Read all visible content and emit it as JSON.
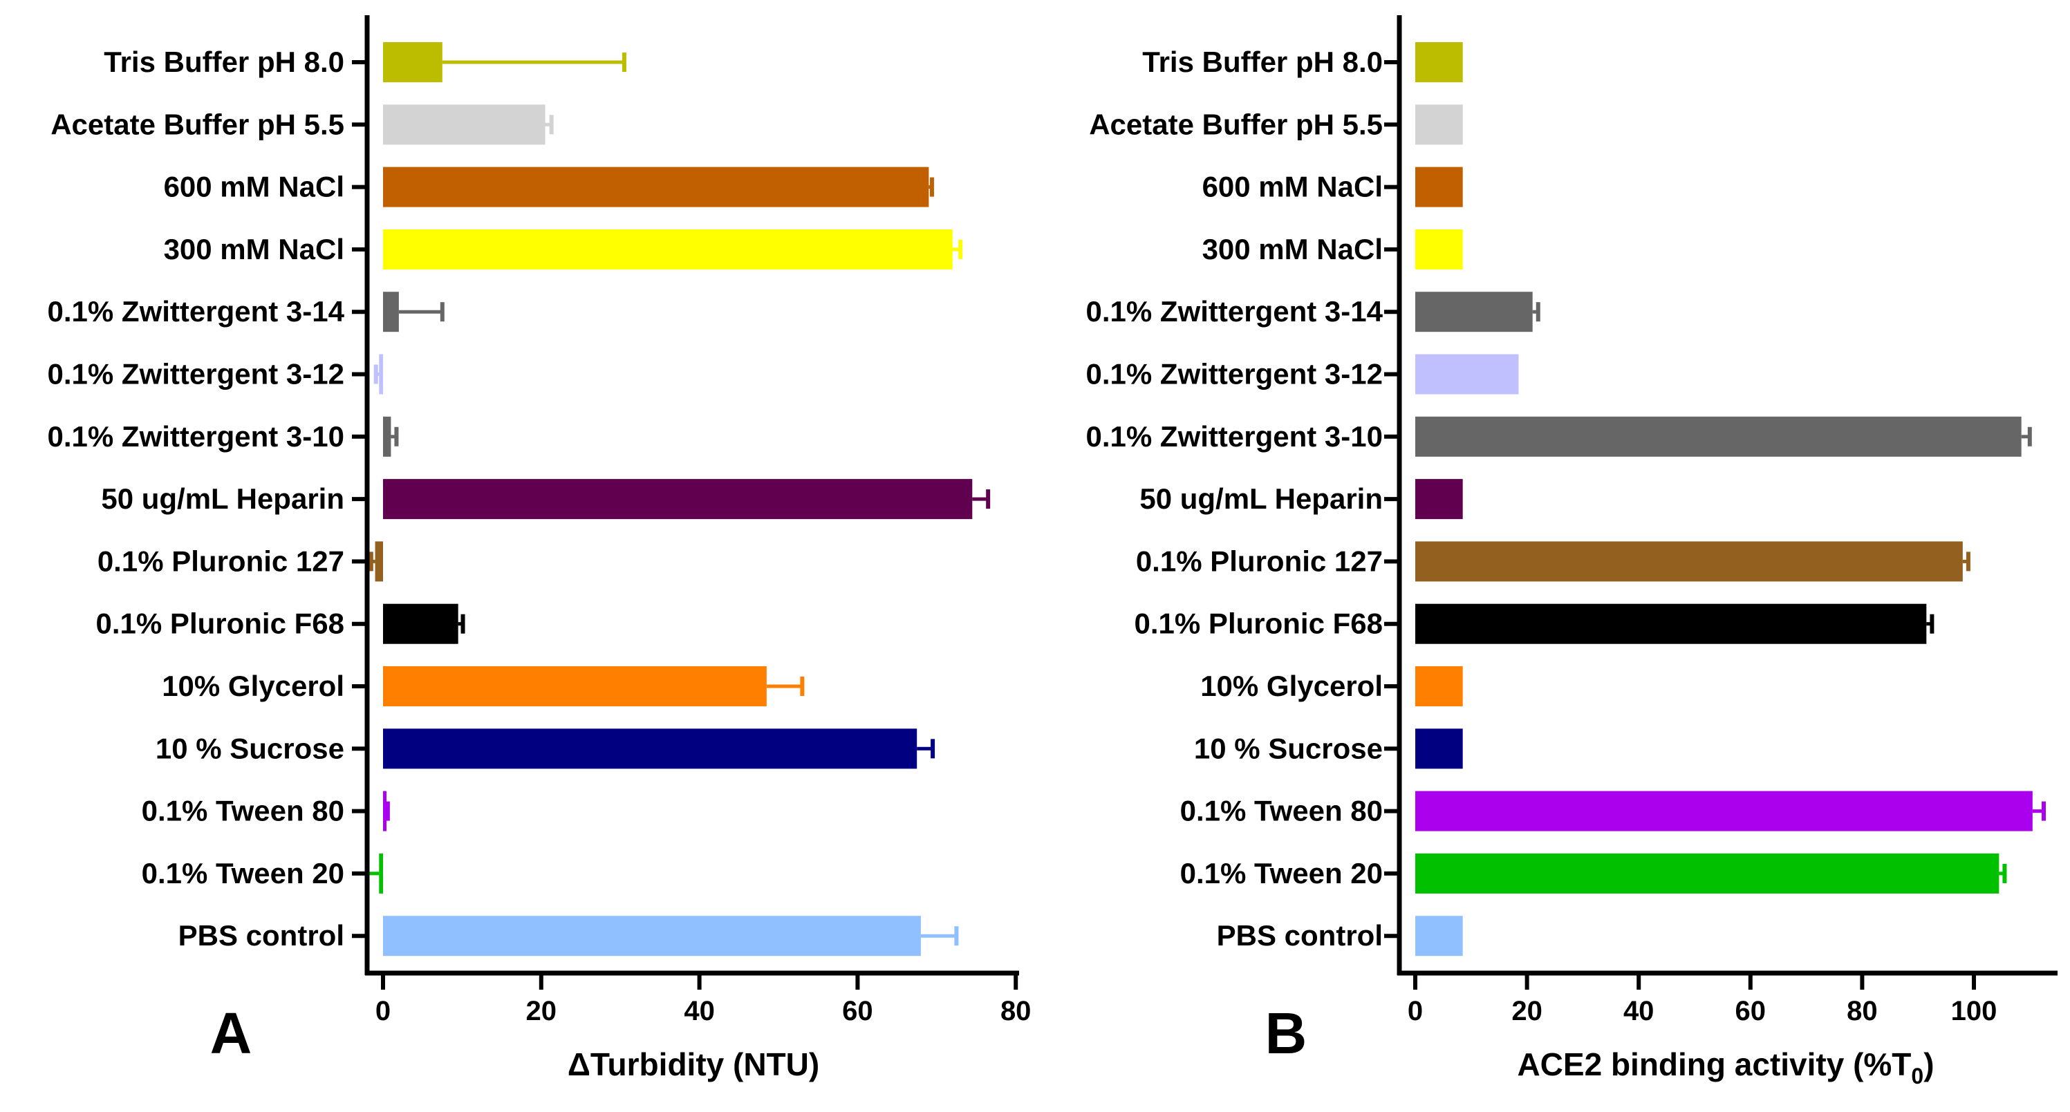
{
  "chart_data": [
    {
      "type": "bar",
      "orientation": "horizontal",
      "panel_label": "A",
      "title": "",
      "xlabel": "ΔTurbidity (NTU)",
      "ylabel": "",
      "xlim": [
        -2,
        80
      ],
      "xticks": [
        0,
        20,
        40,
        60,
        80
      ],
      "tick_labels": [
        "0",
        "20",
        "40",
        "60",
        "80"
      ],
      "grid": false,
      "legend": "none",
      "categories": [
        "Tris Buffer pH 8.0",
        "Acetate Buffer pH 5.5",
        "600 mM NaCl",
        "300 mM NaCl",
        "0.1% Zwittergent 3-14",
        "0.1% Zwittergent 3-12",
        "0.1% Zwittergent 3-10",
        "50 ug/mL Heparin",
        "0.1% Pluronic 127",
        "0.1% Pluronic F68",
        "10% Glycerol",
        "10 % Sucrose",
        "0.1% Tween 80",
        "0.1% Tween 20",
        "PBS control"
      ],
      "values": [
        7.5,
        20.5,
        69,
        72,
        2,
        -0.5,
        1,
        74.5,
        -1,
        9.5,
        48.5,
        67.5,
        0,
        -0.5,
        68
      ],
      "errors": [
        23,
        0.8,
        0.4,
        1,
        5.5,
        0.4,
        0.7,
        2,
        0.5,
        0.6,
        4.5,
        2,
        0.6,
        1.5,
        4.5
      ],
      "colors": [
        "#bdbd00",
        "#d3d3d3",
        "#c06000",
        "#ffff00",
        "#666666",
        "#c0c0ff",
        "#666666",
        "#60004f",
        "#936020",
        "#000000",
        "#ff8000",
        "#000080",
        "#aa00ee",
        "#00c000",
        "#90c0ff"
      ]
    },
    {
      "type": "bar",
      "orientation": "horizontal",
      "panel_label": "B",
      "title": "",
      "xlabel": "ACE2 binding activity (%T",
      "xlabel_subscript": "0",
      "xlabel_suffix": ")",
      "ylabel": "",
      "xlim": [
        -1,
        115
      ],
      "xticks": [
        0,
        20,
        40,
        60,
        80,
        100
      ],
      "tick_labels": [
        "0",
        "20",
        "40",
        "60",
        "80",
        "100"
      ],
      "grid": false,
      "legend": "none",
      "categories": [
        "Tris Buffer pH 8.0",
        "Acetate Buffer pH 5.5",
        "600 mM NaCl",
        "300 mM NaCl",
        "0.1% Zwittergent 3-14",
        "0.1% Zwittergent 3-12",
        "0.1% Zwittergent 3-10",
        "50 ug/mL Heparin",
        "0.1% Pluronic 127",
        "0.1% Pluronic F68",
        "10% Glycerol",
        "10 % Sucrose",
        "0.1% Tween 80",
        "0.1% Tween 20",
        "PBS control"
      ],
      "values": [
        8.5,
        8.5,
        8.5,
        8.5,
        21,
        18.5,
        108.5,
        8.5,
        98,
        91.5,
        8.5,
        8.5,
        110.5,
        104.5,
        8.5
      ],
      "errors": [
        0,
        0,
        0,
        0,
        1,
        0,
        1.5,
        0,
        1,
        1,
        0,
        0,
        2,
        1,
        0
      ],
      "colors": [
        "#bdbd00",
        "#d3d3d3",
        "#c06000",
        "#ffff00",
        "#666666",
        "#c0c0ff",
        "#666666",
        "#60004f",
        "#936020",
        "#000000",
        "#ff8000",
        "#000080",
        "#aa00ee",
        "#00c000",
        "#90c0ff"
      ]
    }
  ]
}
